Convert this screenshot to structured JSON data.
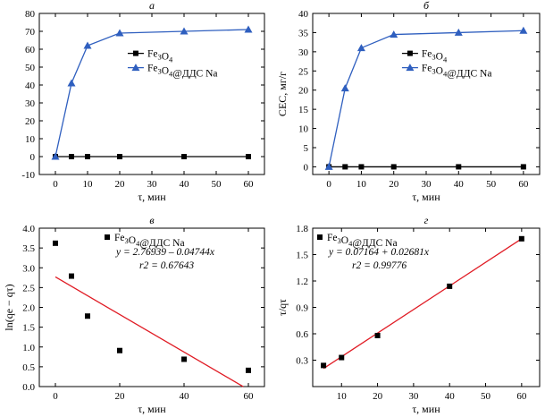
{
  "colors": {
    "fe3o4": "#000000",
    "fe3o4_sds": "#2f5fbf",
    "fit_line": "#e01b24"
  },
  "chart_data": [
    {
      "panel": "а",
      "type": "line",
      "xlabel": "τ, мин",
      "ylabel": "",
      "xlim": [
        -5,
        65
      ],
      "ylim": [
        -10,
        80
      ],
      "xticks": [
        0,
        10,
        20,
        30,
        40,
        50,
        60
      ],
      "yticks": [
        -10,
        0,
        10,
        20,
        30,
        40,
        50,
        60,
        70,
        80
      ],
      "legend_position": "right-middle",
      "x": [
        0,
        5,
        10,
        20,
        40,
        60
      ],
      "series": [
        {
          "name": "Fe3O4",
          "marker": "square",
          "color": "#000000",
          "values": [
            0,
            0,
            0,
            0,
            0,
            0
          ]
        },
        {
          "name": "Fe3O4@ДДС Na",
          "marker": "triangle",
          "color": "#2f5fbf",
          "values": [
            0,
            41,
            62,
            69,
            70,
            71
          ]
        }
      ]
    },
    {
      "panel": "б",
      "type": "line",
      "xlabel": "τ, мин",
      "ylabel": "CEC, мг/г",
      "xlim": [
        -5,
        65
      ],
      "ylim": [
        -2,
        40
      ],
      "xticks": [
        0,
        10,
        20,
        30,
        40,
        50,
        60
      ],
      "yticks": [
        0,
        5,
        10,
        15,
        20,
        25,
        30,
        35,
        40
      ],
      "legend_position": "right-middle",
      "x": [
        0,
        5,
        10,
        20,
        40,
        60
      ],
      "series": [
        {
          "name": "Fe3O4",
          "marker": "square",
          "color": "#000000",
          "values": [
            0,
            0,
            0,
            0,
            0,
            0
          ]
        },
        {
          "name": "Fe3O4@ДДС Na",
          "marker": "triangle",
          "color": "#2f5fbf",
          "values": [
            0,
            20.5,
            31,
            34.5,
            35,
            35.5
          ]
        }
      ]
    },
    {
      "panel": "в",
      "type": "scatter",
      "xlabel": "τ, мин",
      "ylabel": "ln(qe − qτ)",
      "xlim": [
        -5,
        65
      ],
      "ylim": [
        0,
        4.0
      ],
      "xticks": [
        0,
        20,
        40,
        60
      ],
      "yticks": [
        0,
        0.5,
        1.0,
        1.5,
        2.0,
        2.5,
        3.0,
        3.5,
        4.0
      ],
      "legend": "Fe3O4@ДДС Na",
      "equation": "y = 2.76939 – 0.04744x",
      "r2": "r2 = 0.67643",
      "points": {
        "x": [
          0,
          5,
          10,
          20,
          40,
          60
        ],
        "y": [
          3.62,
          2.79,
          1.78,
          0.91,
          0.69,
          0.41
        ]
      },
      "fit": {
        "intercept": 2.76939,
        "slope": -0.04744,
        "x_range": [
          0,
          58.4
        ]
      }
    },
    {
      "panel": "г",
      "type": "scatter",
      "xlabel": "τ, мин",
      "ylabel": "τ/qτ",
      "xlim": [
        2,
        65
      ],
      "ylim": [
        0,
        1.8
      ],
      "xticks": [
        10,
        20,
        30,
        40,
        50,
        60
      ],
      "yticks": [
        0.3,
        0.6,
        0.9,
        1.2,
        1.5,
        1.8
      ],
      "legend": "Fe3O4@ДДС Na",
      "equation": "y = 0.07164 + 0.02681x",
      "r2": "r2 = 0.99776",
      "points": {
        "x": [
          5,
          10,
          20,
          40,
          60
        ],
        "y": [
          0.24,
          0.33,
          0.58,
          1.14,
          1.68
        ]
      },
      "fit": {
        "intercept": 0.07164,
        "slope": 0.02681,
        "x_range": [
          5,
          60
        ]
      }
    }
  ]
}
